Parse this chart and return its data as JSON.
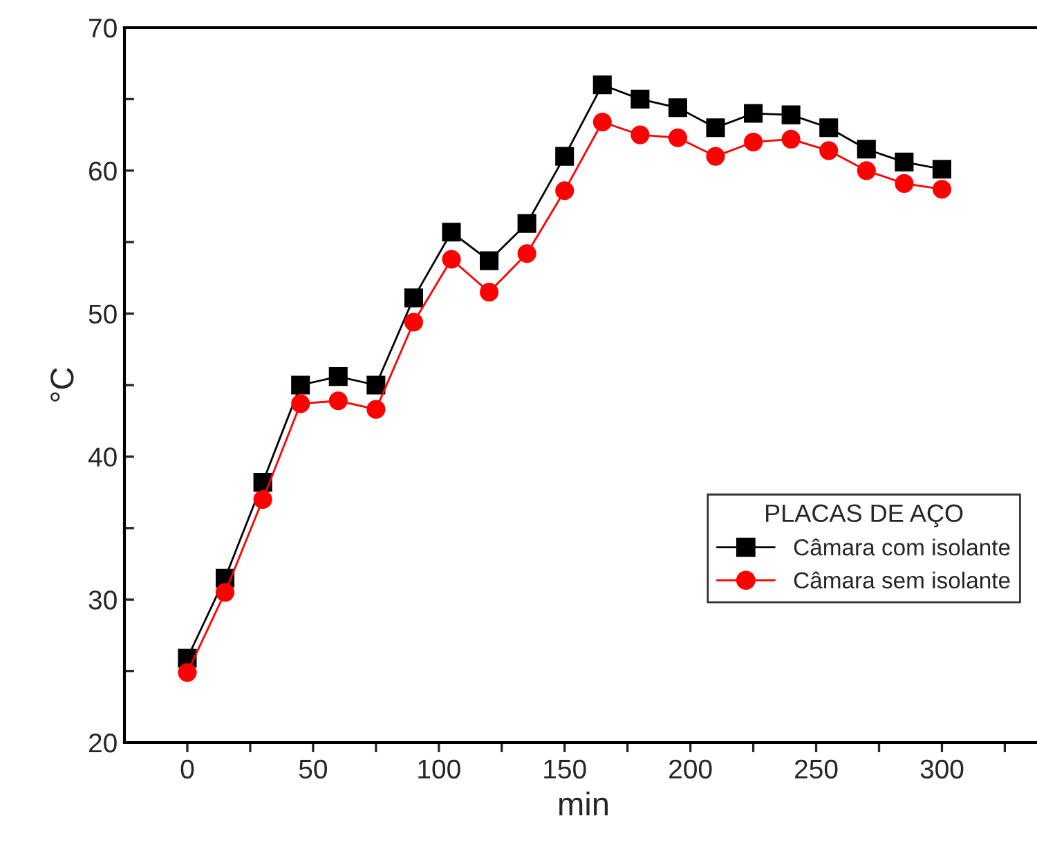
{
  "chart_data": {
    "type": "line",
    "xlabel": "min",
    "ylabel": "°C",
    "legend_title": "PLACAS DE AÇO",
    "x": [
      0,
      15,
      30,
      45,
      60,
      75,
      90,
      105,
      120,
      135,
      150,
      165,
      180,
      195,
      210,
      225,
      240,
      255,
      270,
      285,
      300
    ],
    "series": [
      {
        "name": "Câmara com isolante",
        "color": "#000000",
        "marker": "square",
        "values": [
          25.9,
          31.5,
          38.2,
          45.0,
          45.6,
          45.0,
          51.1,
          55.7,
          53.7,
          56.3,
          61.0,
          66.0,
          65.0,
          64.4,
          63.0,
          64.0,
          63.9,
          63.0,
          61.5,
          60.6,
          60.1
        ]
      },
      {
        "name": "Câmara sem isolante",
        "color": "#ff0000",
        "marker": "circle",
        "values": [
          24.9,
          30.5,
          37.0,
          43.7,
          43.9,
          43.3,
          49.4,
          53.8,
          51.5,
          54.2,
          58.6,
          63.4,
          62.5,
          62.3,
          61.0,
          62.0,
          62.2,
          61.4,
          60.0,
          59.1,
          58.7
        ]
      }
    ],
    "xlim": [
      -25,
      340
    ],
    "ylim": [
      20,
      70
    ],
    "xticks": [
      0,
      {
        "value": 25,
        "label": null
      },
      50,
      {
        "value": 75,
        "label": null
      },
      100,
      {
        "value": 125,
        "label": null
      },
      150,
      {
        "value": 175,
        "label": null
      },
      200,
      {
        "value": 225,
        "label": null
      },
      250,
      {
        "value": 275,
        "label": null
      },
      300,
      {
        "value": 325,
        "label": null
      }
    ],
    "yticks": [
      20,
      {
        "value": 25,
        "label": null
      },
      30,
      {
        "value": 35,
        "label": null
      },
      40,
      {
        "value": 45,
        "label": null
      },
      50,
      {
        "value": 55,
        "label": null
      },
      60,
      {
        "value": 65,
        "label": null
      },
      70
    ],
    "legend": "bottom right",
    "grid": false,
    "line_style": "solid"
  }
}
